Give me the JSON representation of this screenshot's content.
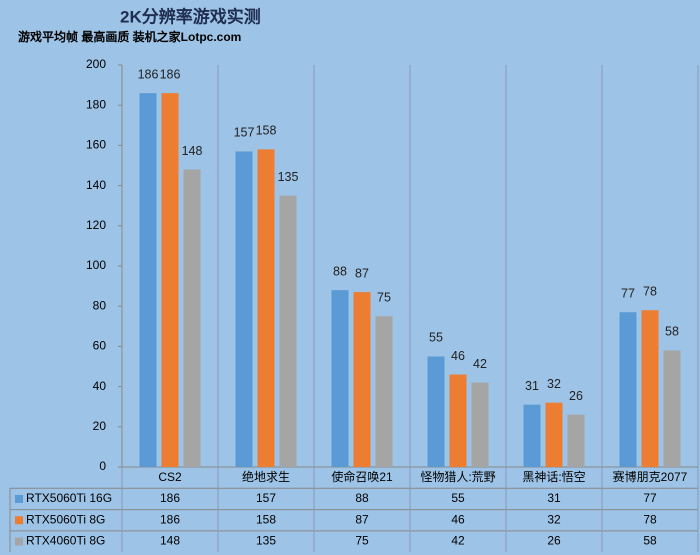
{
  "chart_data": {
    "type": "bar",
    "title": "2K分辨率游戏实测",
    "subtitle": "游戏平均帧 最高画质 装机之家Lotpc.com",
    "categories": [
      "CS2",
      "绝地求生",
      "使命召唤21",
      "怪物猎人:荒野",
      "黑神话:悟空",
      "赛博朋克2077"
    ],
    "series": [
      {
        "name": "RTX5060Ti 16G",
        "color": "#5b9bd5",
        "values": [
          186,
          157,
          88,
          55,
          31,
          77
        ]
      },
      {
        "name": "RTX5060Ti 8G",
        "color": "#ed7d31",
        "values": [
          186,
          158,
          87,
          46,
          32,
          78
        ]
      },
      {
        "name": "RTX4060Ti 8G",
        "color": "#a5a5a5",
        "values": [
          148,
          135,
          75,
          42,
          26,
          58
        ]
      }
    ],
    "ylim": [
      0,
      200
    ],
    "yticks": [
      0,
      20,
      40,
      60,
      80,
      100,
      120,
      140,
      160,
      180,
      200
    ]
  }
}
